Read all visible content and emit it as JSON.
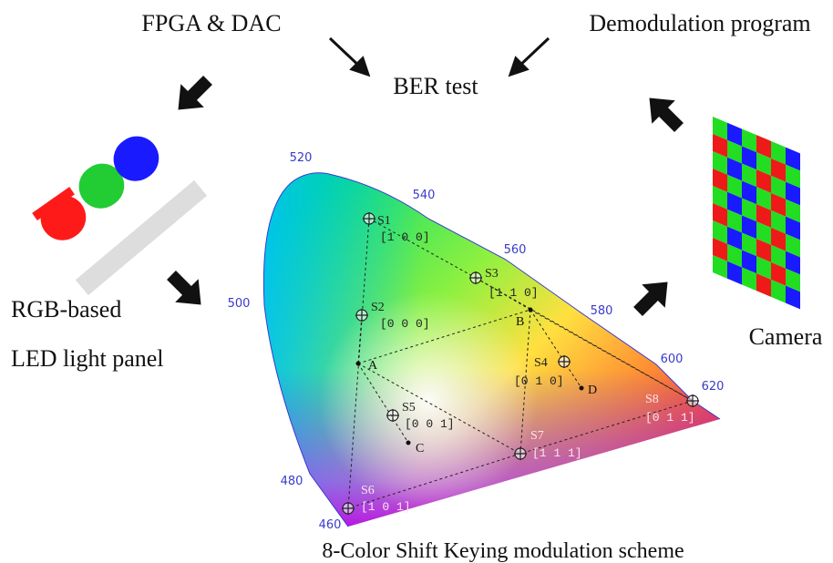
{
  "header": {
    "left": "FPGA & DAC",
    "center": "BER test",
    "right": "Demodulation program"
  },
  "led": {
    "line1": "RGB-based",
    "line2": "LED light panel"
  },
  "camera": {
    "label": "Camera"
  },
  "diagram": {
    "caption": "8-Color Shift Keying modulation scheme",
    "wavelengths": [
      "520",
      "540",
      "560",
      "580",
      "600",
      "620",
      "500",
      "480",
      "460"
    ],
    "symbols": [
      {
        "name": "S1",
        "code": "[1 0 0]"
      },
      {
        "name": "S2",
        "code": "[0 0 0]"
      },
      {
        "name": "S3",
        "code": "[1 1 0]"
      },
      {
        "name": "S4",
        "code": "[0 1 0]"
      },
      {
        "name": "S5",
        "code": "[0 0 1]"
      },
      {
        "name": "S6",
        "code": "[1 0 1]"
      },
      {
        "name": "S7",
        "code": "[1 1 1]"
      },
      {
        "name": "S8",
        "code": "[0 1 1]"
      }
    ],
    "points": [
      "A",
      "B",
      "C",
      "D"
    ]
  }
}
